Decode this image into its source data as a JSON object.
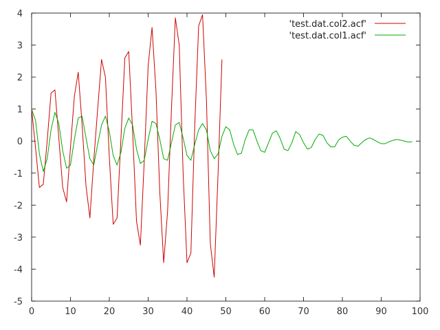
{
  "chart_data": {
    "type": "line",
    "xlim": [
      0,
      100
    ],
    "ylim": [
      -5,
      4
    ],
    "x_ticks": [
      0,
      10,
      20,
      30,
      40,
      50,
      60,
      70,
      80,
      90,
      100
    ],
    "y_ticks": [
      -5,
      -4,
      -3,
      -2,
      -1,
      0,
      1,
      2,
      3,
      4
    ],
    "grid": false,
    "legend_position": "top-right",
    "series": [
      {
        "name": "'test.dat.col2.acf'",
        "color": "#cc0000",
        "x": [
          0,
          1,
          2,
          3,
          4,
          5,
          6,
          7,
          8,
          9,
          10,
          11,
          12,
          13,
          14,
          15,
          16,
          17,
          18,
          19,
          20,
          21,
          22,
          23,
          24,
          25,
          26,
          27,
          28,
          29,
          30,
          31,
          32,
          33,
          34,
          35,
          36,
          37,
          38,
          39,
          40,
          41,
          42,
          43,
          44,
          45,
          46,
          47,
          48,
          49
        ],
        "y": [
          1.0,
          -0.2,
          -1.45,
          -1.35,
          0.0,
          1.5,
          1.6,
          0.1,
          -1.45,
          -1.9,
          -0.2,
          1.4,
          2.15,
          0.5,
          -1.4,
          -2.4,
          -0.6,
          1.0,
          2.55,
          2.0,
          -0.5,
          -2.6,
          -2.4,
          0.1,
          2.6,
          2.8,
          0.3,
          -2.5,
          -3.25,
          -0.6,
          2.35,
          3.55,
          1.6,
          -1.6,
          -3.8,
          -2.2,
          1.0,
          3.85,
          3.0,
          -1.0,
          -3.8,
          -3.5,
          0.5,
          3.6,
          3.95,
          1.3,
          -3.2,
          -4.25,
          -1.0,
          2.55
        ]
      },
      {
        "name": "'test.dat.col1.acf'",
        "color": "#00aa00",
        "x": [
          0,
          1,
          2,
          3,
          4,
          5,
          6,
          7,
          8,
          9,
          10,
          11,
          12,
          13,
          14,
          15,
          16,
          17,
          18,
          19,
          20,
          21,
          22,
          23,
          24,
          25,
          26,
          27,
          28,
          29,
          30,
          31,
          32,
          33,
          34,
          35,
          36,
          37,
          38,
          39,
          40,
          41,
          42,
          43,
          44,
          45,
          46,
          47,
          48,
          49,
          50,
          51,
          52,
          53,
          54,
          55,
          56,
          57,
          58,
          59,
          60,
          61,
          62,
          63,
          64,
          65,
          66,
          67,
          68,
          69,
          70,
          71,
          72,
          73,
          74,
          75,
          76,
          77,
          78,
          79,
          80,
          81,
          82,
          83,
          84,
          85,
          86,
          87,
          88,
          89,
          90,
          91,
          92,
          93,
          94,
          95,
          96,
          97,
          98
        ],
        "y": [
          1.0,
          0.65,
          -0.4,
          -0.95,
          -0.55,
          0.35,
          0.9,
          0.55,
          -0.3,
          -0.85,
          -0.75,
          0.05,
          0.72,
          0.78,
          0.1,
          -0.55,
          -0.75,
          -0.1,
          0.5,
          0.78,
          0.3,
          -0.45,
          -0.75,
          -0.35,
          0.4,
          0.72,
          0.5,
          -0.25,
          -0.7,
          -0.6,
          0.05,
          0.62,
          0.55,
          0.05,
          -0.55,
          -0.6,
          -0.05,
          0.5,
          0.58,
          0.1,
          -0.45,
          -0.6,
          -0.1,
          0.35,
          0.55,
          0.35,
          -0.3,
          -0.55,
          -0.4,
          0.15,
          0.45,
          0.35,
          -0.1,
          -0.42,
          -0.38,
          0.05,
          0.35,
          0.35,
          0.0,
          -0.3,
          -0.35,
          -0.05,
          0.25,
          0.32,
          0.08,
          -0.25,
          -0.3,
          -0.05,
          0.3,
          0.2,
          -0.05,
          -0.25,
          -0.2,
          0.05,
          0.22,
          0.18,
          -0.05,
          -0.18,
          -0.18,
          0.03,
          0.12,
          0.15,
          0.0,
          -0.13,
          -0.16,
          -0.05,
          0.05,
          0.1,
          0.05,
          -0.02,
          -0.08,
          -0.08,
          -0.02,
          0.02,
          0.05,
          0.03,
          0.0,
          -0.03,
          -0.02
        ]
      }
    ]
  }
}
